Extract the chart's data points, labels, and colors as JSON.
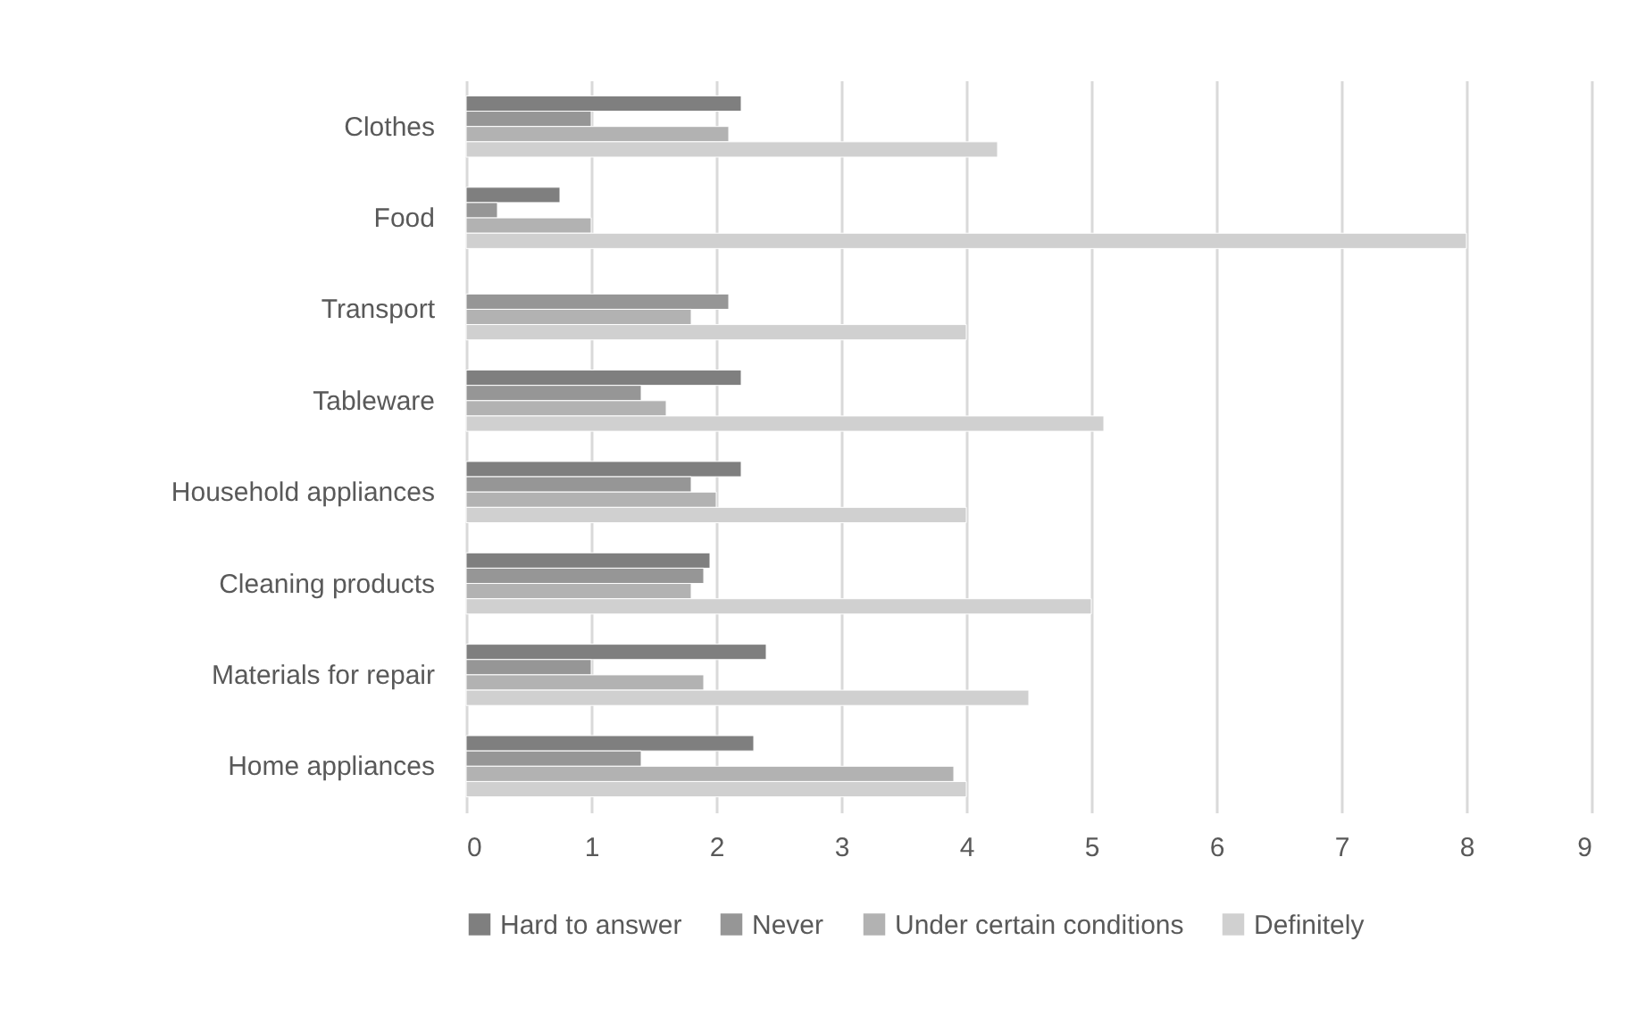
{
  "chart_data": {
    "type": "bar",
    "orientation": "horizontal",
    "categories": [
      "Clothes",
      "Food",
      "Transport",
      "Tableware",
      "Household appliances",
      "Cleaning products",
      "Materials for repair",
      "Home appliances"
    ],
    "series": [
      {
        "name": "Hard to answer",
        "color": "#7f7f7f",
        "values": [
          2.2,
          0.75,
          null,
          2.2,
          2.2,
          1.95,
          2.4,
          2.3
        ]
      },
      {
        "name": "Never",
        "color": "#969696",
        "values": [
          1.0,
          0.25,
          2.1,
          1.4,
          1.8,
          1.9,
          1.0,
          1.4
        ]
      },
      {
        "name": "Under certain conditions",
        "color": "#b2b2b2",
        "values": [
          2.1,
          1.0,
          1.8,
          1.6,
          2.0,
          1.8,
          1.9,
          3.9
        ]
      },
      {
        "name": "Definitely",
        "color": "#d0d0d0",
        "values": [
          4.25,
          8.0,
          4.0,
          5.1,
          4.0,
          5.0,
          4.5,
          4.0
        ]
      }
    ],
    "xlim": [
      0,
      9
    ],
    "xticks": [
      0,
      1,
      2,
      3,
      4,
      5,
      6,
      7,
      8,
      9
    ],
    "grid": "x",
    "legend": "bottom"
  }
}
